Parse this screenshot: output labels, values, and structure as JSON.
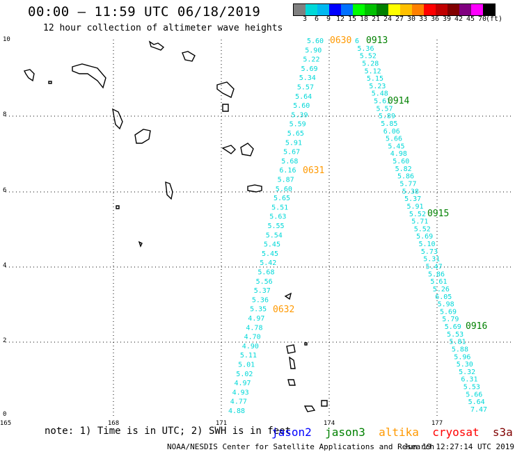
{
  "title": "00:00 – 11:59 UTC 06/18/2019",
  "subtitle": "12 hour collection of altimeter wave heights",
  "legend": {
    "colors": [
      "#808080",
      "#00d8d8",
      "#00b8f0",
      "#0000ff",
      "#0070ff",
      "#00ff00",
      "#00c000",
      "#008000",
      "#ffff00",
      "#ffc000",
      "#ff8000",
      "#ff0000",
      "#c00000",
      "#800000",
      "#800080",
      "#ff00ff",
      "#000000"
    ],
    "labels": [
      "3",
      "6",
      "9",
      "12",
      "15",
      "18",
      "21",
      "24",
      "27",
      "30",
      "33",
      "36",
      "39",
      "42",
      "45",
      "70",
      "(ft)"
    ]
  },
  "axes": {
    "x_labels": [
      "165",
      "168",
      "171",
      "174",
      "177"
    ],
    "y_labels": [
      "0",
      "2",
      "4",
      "6",
      "8",
      "10"
    ]
  },
  "notes": {
    "text": "note: 1) Time is in UTC; 2) SWH is in feet",
    "satellites": [
      {
        "name": "jason2",
        "color": "#0000ff"
      },
      {
        "name": "jason3",
        "color": "#008000"
      },
      {
        "name": "altika",
        "color": "#ff9900"
      },
      {
        "name": "cryosat",
        "color": "#ff0000"
      },
      {
        "name": "s3a",
        "color": "#800000"
      }
    ]
  },
  "footer": {
    "left": "NOAA/NESDIS Center for Satellite Applications and Research",
    "right": "Jun 19 12:27:14 UTC 2019"
  },
  "track_altika": {
    "color": "#00d8d8",
    "values": [
      "5.60",
      "5.90",
      "5.22",
      "5.69",
      "5.34",
      "5.57",
      "5.64",
      "5.60",
      "5.39",
      "5.59",
      "5.65",
      "5.91",
      "5.67",
      "5.68",
      "6.16",
      "5.87",
      "5.60",
      "5.65",
      "5.51",
      "5.63",
      "5.55",
      "5.54",
      "5.45",
      "5.45",
      "5.42",
      "5.68",
      "5.56",
      "5.37",
      "5.36",
      "5.35",
      "4.97",
      "4.78",
      "4.70",
      "4.90",
      "5.11",
      "5.01",
      "5.02",
      "4.97",
      "4.93",
      "4.77",
      "4.88"
    ],
    "time_labels": [
      {
        "text": "0630",
        "color": "#ff9900"
      },
      {
        "text": "0631",
        "color": "#ff9900"
      },
      {
        "text": "0632",
        "color": "#ff9900"
      }
    ]
  },
  "track_jason3": {
    "color": "#00d8d8",
    "values": [
      "6",
      "5.36",
      "5.52",
      "5.28",
      "5.12",
      "5.15",
      "5.23",
      "5.48",
      "5.61",
      "5.57",
      "5.89",
      "5.85",
      "6.06",
      "5.66",
      "5.45",
      "4.98",
      "5.60",
      "5.82",
      "5.86",
      "5.77",
      "5.38",
      "5.37",
      "5.91",
      "5.52",
      "5.71",
      "5.52",
      "5.69",
      "5.10",
      "5.73",
      "5.31",
      "5.47",
      "5.86",
      "5.61",
      "5.26",
      "6.05",
      "5.98",
      "5.69",
      "5.79",
      "5.69",
      "5.53",
      "5.81",
      "5.88",
      "5.96",
      "5.30",
      "5.32",
      "6.31",
      "5.53",
      "5.66",
      "5.64",
      "7.47"
    ],
    "time_labels": [
      {
        "text": "0913",
        "color": "#008000"
      },
      {
        "text": "0914",
        "color": "#008000"
      },
      {
        "text": "0915",
        "color": "#008000"
      },
      {
        "text": "0916",
        "color": "#008000"
      }
    ]
  }
}
